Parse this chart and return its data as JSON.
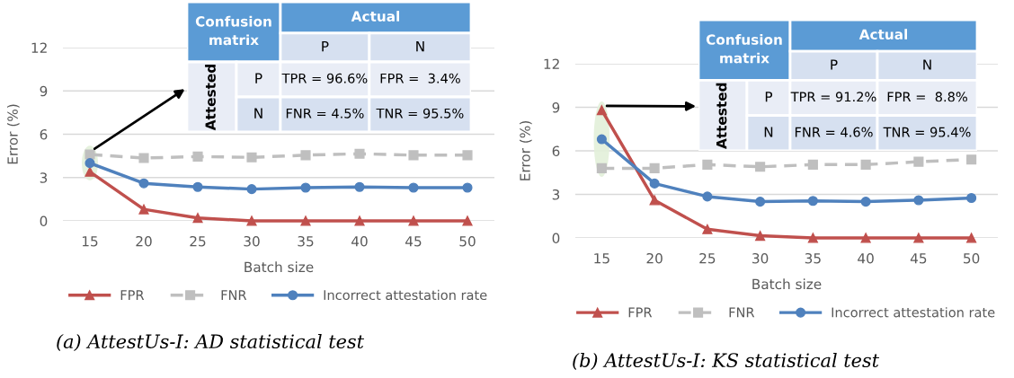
{
  "chart_data": [
    {
      "type": "line",
      "xlabel": "Batch size",
      "ylabel": "Error (%)",
      "categories": [
        "15",
        "20",
        "25",
        "30",
        "35",
        "40",
        "45",
        "50"
      ],
      "ylim": [
        0,
        12
      ],
      "yticks": [
        0,
        3,
        6,
        9,
        12
      ],
      "grid": "y",
      "legend": "bottom",
      "series": [
        {
          "name": "FPR",
          "color": "#c0504d",
          "marker": "triangle",
          "line_style": "solid",
          "values": [
            3.4,
            0.8,
            0.2,
            0,
            0,
            0,
            0,
            0
          ]
        },
        {
          "name": "FNR",
          "color": "#bfbfbf",
          "marker": "square",
          "line_style": "dashed",
          "values": [
            4.6,
            4.35,
            4.45,
            4.4,
            4.55,
            4.65,
            4.55,
            4.55
          ]
        },
        {
          "name": "Incorrect attestation rate",
          "color": "#4f81bd",
          "marker": "circle",
          "line_style": "solid",
          "values": [
            4.0,
            2.6,
            2.35,
            2.2,
            2.3,
            2.35,
            2.3,
            2.3
          ]
        }
      ],
      "annotations": [
        "(a) AttestUs-I: AD statistical test",
        "Confusion matrix",
        "Actual",
        "P",
        "N",
        "Attested",
        "P",
        "TPR = 96.6%",
        "FPR =  3.4%",
        "N",
        "FNR = 4.5%",
        "TNR = 95.5%"
      ]
    },
    {
      "type": "line",
      "xlabel": "Batch size",
      "ylabel": "Error (%)",
      "categories": [
        "15",
        "20",
        "25",
        "30",
        "35",
        "40",
        "45",
        "50"
      ],
      "ylim": [
        0,
        12
      ],
      "yticks": [
        0,
        3,
        6,
        9,
        12
      ],
      "grid": "y",
      "legend": "bottom",
      "series": [
        {
          "name": "FPR",
          "color": "#c0504d",
          "marker": "triangle",
          "line_style": "solid",
          "values": [
            8.8,
            2.6,
            0.6,
            0.15,
            0,
            0,
            0,
            0
          ]
        },
        {
          "name": "FNR",
          "color": "#bfbfbf",
          "marker": "square",
          "line_style": "dashed",
          "values": [
            4.8,
            4.8,
            5.05,
            4.9,
            5.05,
            5.05,
            5.25,
            5.4
          ]
        },
        {
          "name": "Incorrect attestation rate",
          "color": "#4f81bd",
          "marker": "circle",
          "line_style": "solid",
          "values": [
            6.8,
            3.75,
            2.85,
            2.5,
            2.55,
            2.5,
            2.6,
            2.75
          ]
        }
      ],
      "annotations": [
        "(b) AttestUs-I: KS statistical test",
        "Confusion matrix",
        "Actual",
        "P",
        "N",
        "Attested",
        "P",
        "TPR = 91.2%",
        "FPR =  8.8%",
        "N",
        "FNR = 4.6%",
        "TNR = 95.4%"
      ]
    }
  ]
}
